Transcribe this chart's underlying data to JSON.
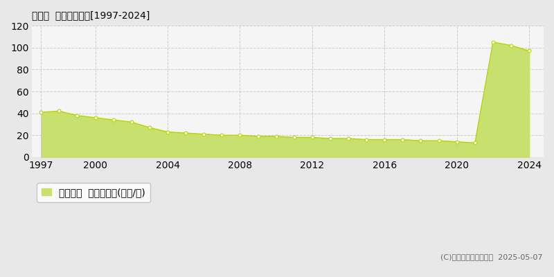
{
  "title": "平群町  基準地価推移[1997-2024]",
  "years": [
    1997,
    1998,
    1999,
    2000,
    2001,
    2002,
    2003,
    2004,
    2005,
    2006,
    2007,
    2008,
    2009,
    2010,
    2011,
    2012,
    2013,
    2014,
    2015,
    2016,
    2017,
    2018,
    2019,
    2020,
    2021,
    2022,
    2023,
    2024
  ],
  "values": [
    41,
    42,
    38,
    36,
    34,
    32,
    27,
    23,
    22,
    21,
    20,
    20,
    19,
    19,
    18,
    18,
    17,
    17,
    16,
    16,
    16,
    15,
    15,
    14,
    13,
    105,
    102,
    97
  ],
  "fill_color": "#c8e06e",
  "line_color": "#b8d400",
  "marker_color": "#ffffff",
  "marker_edge_color": "#b8d400",
  "background_color": "#e8e8e8",
  "plot_bg_color": "#f5f5f5",
  "grid_color": "#cccccc",
  "ylim": [
    0,
    120
  ],
  "yticks": [
    0,
    20,
    40,
    60,
    80,
    100,
    120
  ],
  "xlim_min": 1996.5,
  "xlim_max": 2024.8,
  "xticks": [
    1997,
    2000,
    2004,
    2008,
    2012,
    2016,
    2020,
    2024
  ],
  "legend_label": "基準地価  平均坪単価(万円/坪)",
  "copyright_text": "(C)土地価格ドットコム  2025-05-07",
  "title_fontsize": 13,
  "tick_fontsize": 8.5,
  "legend_fontsize": 9,
  "copyright_fontsize": 8
}
